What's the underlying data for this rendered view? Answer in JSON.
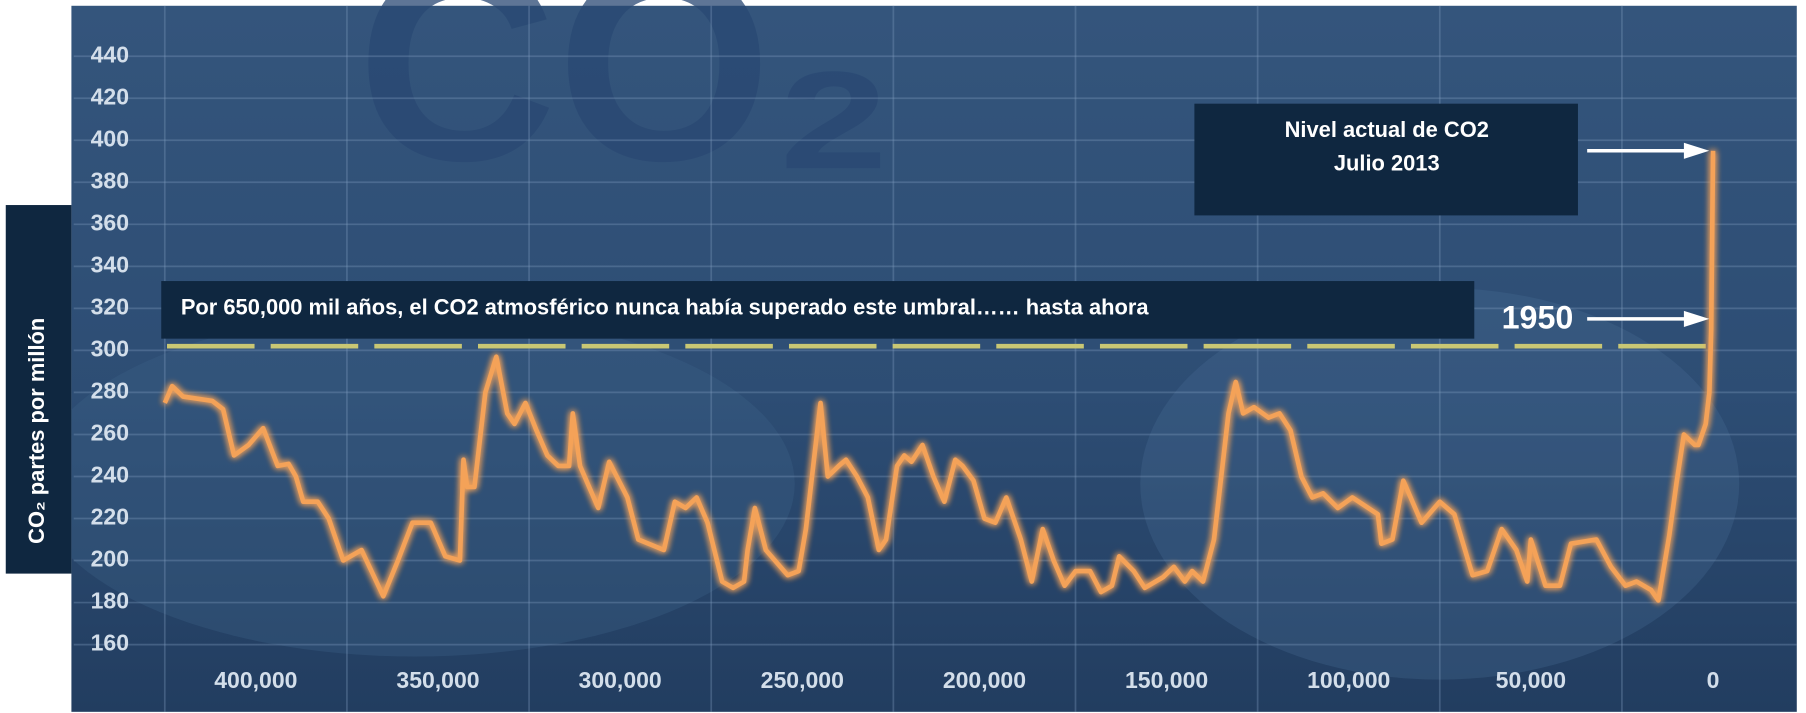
{
  "chart_data": {
    "type": "line",
    "watermark": "CO₂",
    "y_label": "CO₂ partes por millón",
    "x": [
      425000,
      423000,
      420000,
      412000,
      409000,
      406000,
      402000,
      398000,
      394000,
      391000,
      389000,
      387000,
      383000,
      380000,
      376000,
      371000,
      365000,
      361000,
      357000,
      352000,
      348000,
      344000,
      343000,
      342000,
      340000,
      337000,
      334000,
      331000,
      329000,
      326000,
      323000,
      320000,
      317000,
      314000,
      313000,
      311000,
      306000,
      303000,
      298000,
      295000,
      288000,
      285000,
      282000,
      279000,
      276000,
      272000,
      269000,
      266000,
      265000,
      263000,
      260000,
      254000,
      251000,
      249000,
      245000,
      243000,
      240000,
      238000,
      235000,
      232000,
      229000,
      227000,
      224000,
      222000,
      220000,
      217000,
      214000,
      211000,
      208000,
      206000,
      203000,
      200000,
      197000,
      194000,
      190000,
      187000,
      184000,
      181000,
      178000,
      175000,
      171000,
      168000,
      165000,
      163000,
      159000,
      156000,
      151000,
      148000,
      145000,
      143000,
      140000,
      137000,
      133000,
      131000,
      129000,
      126000,
      122000,
      119000,
      116000,
      113000,
      110000,
      107000,
      103000,
      99000,
      92000,
      91000,
      88000,
      85000,
      80000,
      75000,
      71000,
      66000,
      62000,
      58000,
      54000,
      51000,
      50000,
      46000,
      42000,
      39000,
      32000,
      28000,
      24000,
      21000,
      17000,
      15000,
      12000,
      10000,
      8000,
      5000,
      4000,
      2000,
      1000,
      500,
      0
    ],
    "values": [
      275,
      283,
      278,
      276,
      272,
      250,
      255,
      263,
      245,
      246,
      240,
      228,
      228,
      220,
      200,
      205,
      183,
      200,
      218,
      218,
      202,
      200,
      248,
      235,
      235,
      280,
      297,
      270,
      265,
      275,
      262,
      250,
      245,
      245,
      270,
      245,
      225,
      247,
      230,
      210,
      205,
      228,
      225,
      230,
      218,
      190,
      187,
      190,
      205,
      225,
      205,
      193,
      195,
      215,
      275,
      240,
      245,
      248,
      240,
      230,
      205,
      210,
      245,
      250,
      247,
      255,
      240,
      228,
      248,
      245,
      238,
      220,
      218,
      230,
      210,
      190,
      215,
      200,
      188,
      195,
      195,
      185,
      188,
      202,
      195,
      187,
      192,
      197,
      190,
      195,
      190,
      210,
      270,
      285,
      270,
      273,
      268,
      270,
      262,
      240,
      230,
      232,
      225,
      230,
      222,
      208,
      210,
      238,
      218,
      228,
      222,
      193,
      195,
      215,
      205,
      190,
      210,
      188,
      188,
      208,
      210,
      197,
      188,
      190,
      186,
      181,
      212,
      237,
      260,
      255,
      255,
      265,
      280,
      310,
      395
    ],
    "color": "#f4a259",
    "xlim": [
      450000,
      -23000
    ],
    "ylim": [
      128,
      464
    ],
    "xticks": [
      {
        "value": 400000,
        "label": "400,000"
      },
      {
        "value": 350000,
        "label": "350,000"
      },
      {
        "value": 300000,
        "label": "300,000"
      },
      {
        "value": 250000,
        "label": "250,000"
      },
      {
        "value": 200000,
        "label": "200,000"
      },
      {
        "value": 150000,
        "label": "150,000"
      },
      {
        "value": 100000,
        "label": "100,000"
      },
      {
        "value": 50000,
        "label": "50,000"
      },
      0
    ],
    "xgrid": [
      425000,
      375000,
      325000,
      275000,
      225000,
      175000,
      125000,
      75000,
      25000
    ],
    "yticks": [
      160,
      180,
      200,
      220,
      240,
      260,
      280,
      300,
      320,
      340,
      360,
      380,
      400,
      420,
      440
    ],
    "grid": true,
    "threshold": {
      "value": 302,
      "label": "Por 650,000 mil años, el CO2 atmosférico nunca había superado este umbral…… hasta ahora",
      "color": "#c9c774"
    },
    "annotations": [
      {
        "text": [
          "Nivel actual de CO2",
          "Julio 2013"
        ],
        "y": 395
      },
      {
        "text": "1950",
        "y": 315
      }
    ]
  }
}
